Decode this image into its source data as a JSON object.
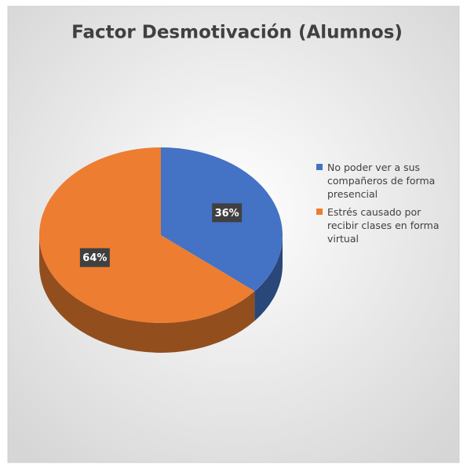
{
  "chart_data": {
    "type": "pie",
    "title": "Factor Desmotivación (Alumnos)",
    "categories": [
      "No poder ver a sus compañeros de forma presencial",
      "Estrés causado por recibir clases en forma virtual"
    ],
    "values": [
      36,
      64
    ],
    "value_labels": [
      "36%",
      "64%"
    ],
    "colors": [
      "#4472c4",
      "#ed7d31"
    ],
    "legend": "right"
  }
}
